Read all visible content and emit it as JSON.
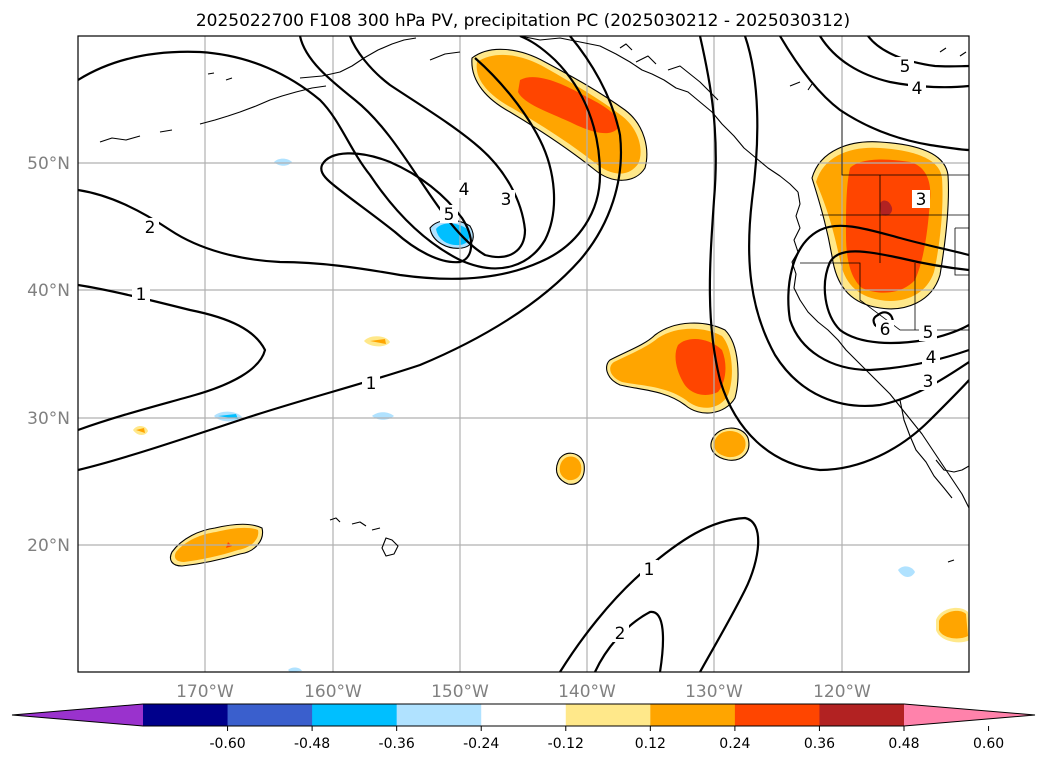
{
  "title": "2025022700 F108 300 hPa PV, precipitation PC (2025030212 - 2025030312)",
  "map": {
    "lat_ticks": [
      {
        "value": 50,
        "label": "50°N"
      },
      {
        "value": 40,
        "label": "40°N"
      },
      {
        "value": 30,
        "label": "30°N"
      },
      {
        "value": 20,
        "label": "20°N"
      }
    ],
    "lon_ticks": [
      {
        "value": -170,
        "label": "170°W"
      },
      {
        "value": -160,
        "label": "160°W"
      },
      {
        "value": -150,
        "label": "150°W"
      },
      {
        "value": -140,
        "label": "140°W"
      },
      {
        "value": -130,
        "label": "130°W"
      },
      {
        "value": -120,
        "label": "120°W"
      }
    ],
    "contour_labels": [
      "1",
      "2",
      "3",
      "4",
      "5",
      "6"
    ]
  },
  "colorbar": {
    "ticks": [
      "-0.60",
      "-0.48",
      "-0.36",
      "-0.24",
      "-0.12",
      "0.12",
      "0.24",
      "0.36",
      "0.48",
      "0.60"
    ],
    "colors": [
      "#9a32cd",
      "#00008b",
      "#3a5fcd",
      "#00bfff",
      "#b0e2ff",
      "#ffffff",
      "#ffe88a",
      "#ffa500",
      "#ff4500",
      "#b22222",
      "#ff82ab"
    ]
  }
}
